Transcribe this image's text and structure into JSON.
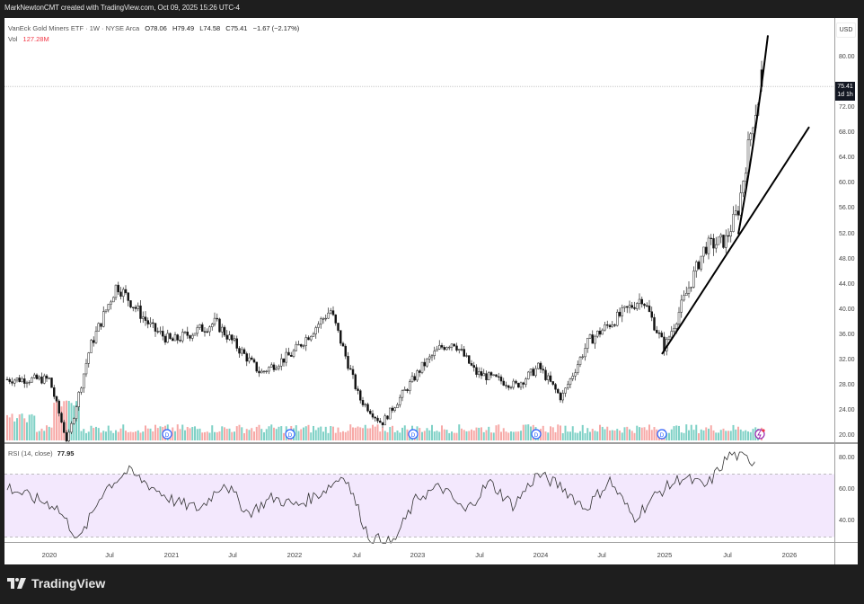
{
  "header": {
    "credit": "MarkNewtonCMT created with TradingView.com, Oct 09, 2025 15:26 UTC-4"
  },
  "legend": {
    "symbol": "VanEck Gold Miners ETF · 1W · NYSE Arca",
    "open": "O78.06",
    "high": "H79.49",
    "low": "L74.58",
    "close": "C75.41",
    "change": "−1.67 (−2.17%)",
    "vol_label": "Vol",
    "vol_value": "127.28M"
  },
  "rsi_legend": {
    "label": "RSI (14, close)",
    "value": "77.95"
  },
  "price_axis": {
    "currency": "USD",
    "ticks": [
      "80.00",
      "72.00",
      "68.00",
      "64.00",
      "60.00",
      "56.00",
      "52.00",
      "48.00",
      "44.00",
      "40.00",
      "36.00",
      "32.00",
      "28.00",
      "24.00",
      "20.00"
    ],
    "last_price": "75.41",
    "countdown": "1d 1h"
  },
  "rsi_axis": {
    "ticks": [
      "80.00",
      "60.00",
      "40.00"
    ]
  },
  "x_axis": {
    "labels": [
      "2020",
      "Jul",
      "2021",
      "Jul",
      "2022",
      "Jul",
      "2023",
      "Jul",
      "2024",
      "Jul",
      "2025",
      "Jul",
      "2026"
    ]
  },
  "footer": {
    "brand": "TradingView"
  },
  "colors": {
    "up_volume": "#7fd1c6",
    "down_volume": "#f7a9a7",
    "rsi_band": "#f3e8fd",
    "dividend": "#2962ff",
    "earnings": "#9c27b0"
  },
  "chart_data": [
    {
      "type": "candlestick",
      "title": "VanEck Gold Miners ETF (GDX) · 1W · NYSE Arca",
      "xlabel": "",
      "ylabel": "USD",
      "ylim": [
        20,
        82
      ],
      "x_ticks": [
        "2020",
        "Jul",
        "2021",
        "Jul",
        "2022",
        "Jul",
        "2023",
        "Jul",
        "2024",
        "Jul",
        "2025",
        "Jul",
        "2026"
      ],
      "last": {
        "open": 78.06,
        "high": 79.49,
        "low": 74.58,
        "close": 75.41,
        "change": -1.67,
        "change_pct": -2.17
      },
      "approx_close_path": {
        "x": [
          "2019-10",
          "2020-01",
          "2020-03",
          "2020-05",
          "2020-08",
          "2020-11",
          "2021-01",
          "2021-05",
          "2021-09",
          "2021-12",
          "2022-04",
          "2022-07",
          "2022-09",
          "2023-01",
          "2023-03",
          "2023-05",
          "2023-07",
          "2023-10",
          "2023-12",
          "2024-02",
          "2024-05",
          "2024-10",
          "2024-12",
          "2025-04",
          "2025-06",
          "2025-08",
          "2025-09",
          "2025-10"
        ],
        "y": [
          29,
          29,
          19,
          34,
          44,
          37,
          35,
          38,
          30,
          33,
          40,
          26,
          22,
          31,
          34,
          35,
          30,
          28,
          31,
          26,
          35,
          42,
          34,
          50,
          51,
          56,
          70,
          75.41
        ]
      },
      "trendlines": [
        {
          "from": [
            "2024-12",
            33
          ],
          "to": [
            "2026-01",
            69
          ]
        },
        {
          "from": [
            "2025-08",
            52
          ],
          "to": [
            "2025-10",
            82
          ]
        }
      ],
      "horizontal_line": {
        "value": 75.41,
        "style": "dotted"
      },
      "markers": [
        "D (dividend)",
        "D",
        "D",
        "D",
        "D",
        "earnings"
      ]
    },
    {
      "type": "bar",
      "title": "Vol",
      "last_value": "127.28M"
    },
    {
      "type": "line",
      "title": "RSI (14, close)",
      "last_value": 77.95,
      "ylim": [
        25,
        85
      ],
      "bands": [
        30,
        70
      ],
      "approx_values": [
        62,
        55,
        50,
        28,
        60,
        72,
        62,
        52,
        48,
        65,
        45,
        55,
        50,
        58,
        70,
        30,
        26,
        55,
        62,
        46,
        65,
        50,
        70,
        62,
        48,
        66,
        42,
        58,
        68,
        62,
        83,
        78
      ]
    }
  ]
}
